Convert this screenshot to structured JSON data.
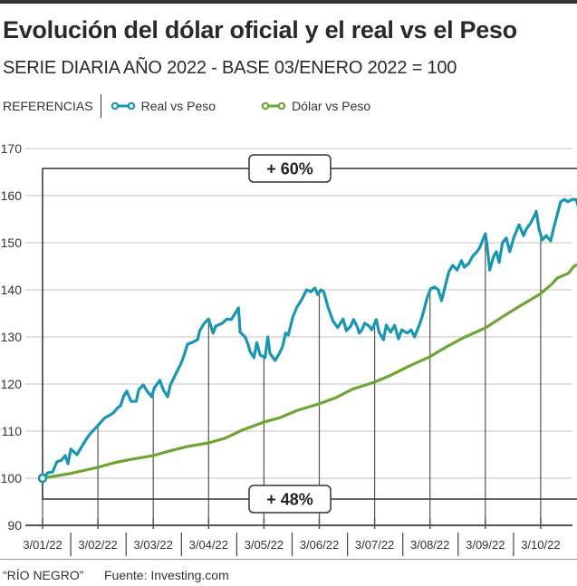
{
  "header": {
    "title": "Evolución del dólar oficial y el real vs el Peso",
    "subtitle": "SERIE DIARIA AÑO 2022 - BASE 03/ENERO 2022 = 100"
  },
  "legend": {
    "label": "REFERENCIAS",
    "items": [
      {
        "name": "Real vs Peso",
        "color": "#1a96b3",
        "icon": "line-dot-icon"
      },
      {
        "name": "Dólar vs Peso",
        "color": "#6ea535",
        "icon": "line-dot-icon"
      }
    ]
  },
  "footer": {
    "credit": "“RÍO NEGRO”",
    "source": "Fuente: Investing.com"
  },
  "chart_data": {
    "type": "line",
    "title": "Evolución del dólar oficial y el real vs el Peso",
    "subtitle": "SERIE DIARIA AÑO 2022 - BASE 03/ENERO 2022 = 100",
    "xlabel": "",
    "ylabel": "",
    "ylim": [
      90,
      170
    ],
    "yticks": [
      90,
      100,
      110,
      120,
      130,
      140,
      150,
      160,
      170
    ],
    "grid": true,
    "legend_position": "top-left",
    "x_tick_labels": [
      "3/01/22",
      "3/02/22",
      "3/03/22",
      "3/04/22",
      "3/05/22",
      "3/06/22",
      "3/07/22",
      "3/08/22",
      "3/09/22",
      "3/10/22"
    ],
    "x_unit": "months since 3/01/22",
    "annotations": [
      {
        "text": "+ 60%",
        "series": "Real vs Peso",
        "position": "top"
      },
      {
        "text": "+ 48%",
        "series": "Dólar vs Peso",
        "position": "bottom"
      }
    ],
    "series": [
      {
        "name": "Real vs Peso",
        "color": "#1a96b3",
        "x": [
          0,
          0.1,
          0.18,
          0.26,
          0.34,
          0.41,
          0.46,
          0.51,
          0.62,
          0.79,
          0.87,
          1.0,
          1.11,
          1.23,
          1.29,
          1.36,
          1.41,
          1.46,
          1.52,
          1.6,
          1.69,
          1.74,
          1.82,
          1.9,
          1.97,
          2.02,
          2.12,
          2.18,
          2.26,
          2.31,
          2.43,
          2.51,
          2.56,
          2.62,
          2.7,
          2.8,
          2.84,
          2.92,
          3.0,
          3.08,
          3.13,
          3.25,
          3.33,
          3.41,
          3.49,
          3.54,
          3.57,
          3.66,
          3.71,
          3.75,
          3.82,
          3.87,
          3.93,
          4.02,
          4.07,
          4.11,
          4.2,
          4.28,
          4.34,
          4.39,
          4.44,
          4.52,
          4.59,
          4.69,
          4.77,
          4.85,
          4.92,
          4.97,
          5.03,
          5.08,
          5.16,
          5.25,
          5.33,
          5.43,
          5.49,
          5.57,
          5.62,
          5.69,
          5.72,
          5.77,
          5.82,
          5.9,
          5.95,
          6.03,
          6.08,
          6.16,
          6.21,
          6.29,
          6.36,
          6.43,
          6.49,
          6.59,
          6.66,
          6.72,
          6.82,
          6.87,
          6.95,
          7.01,
          7.08,
          7.15,
          7.21,
          7.28,
          7.34,
          7.41,
          7.49,
          7.57,
          7.62,
          7.7,
          7.77,
          7.85,
          7.9,
          8.0,
          8.03,
          8.08,
          8.15,
          8.2,
          8.25,
          8.31,
          8.38,
          8.44,
          8.52,
          8.61,
          8.69,
          8.74,
          8.82,
          8.89,
          8.92,
          8.97,
          9.03,
          9.1,
          9.18,
          9.23,
          9.36,
          9.43,
          9.49,
          9.57,
          9.64,
          9.69,
          9.74,
          9.82
        ],
        "values": [
          100.0,
          101.2,
          101.3,
          103.5,
          103.8,
          104.8,
          103.1,
          106.2,
          105.0,
          108.3,
          109.6,
          111.2,
          112.7,
          113.5,
          114.0,
          115.0,
          115.4,
          117.3,
          118.5,
          116.3,
          116.3,
          118.8,
          119.8,
          118.3,
          117.3,
          119.2,
          120.8,
          118.8,
          117.3,
          119.8,
          122.7,
          124.6,
          126.2,
          128.5,
          128.8,
          129.4,
          131.3,
          132.9,
          133.8,
          130.8,
          132.3,
          132.9,
          133.8,
          133.7,
          135.2,
          136.2,
          131.0,
          130.0,
          128.5,
          126.9,
          125.6,
          128.8,
          126.2,
          125.6,
          130.0,
          126.5,
          125.0,
          126.5,
          128.1,
          130.8,
          130.4,
          134.2,
          136.2,
          138.1,
          140.0,
          139.6,
          140.4,
          139.0,
          140.0,
          139.6,
          136.2,
          133.3,
          132.0,
          133.8,
          131.3,
          132.3,
          133.7,
          132.0,
          130.8,
          131.5,
          132.9,
          132.3,
          131.5,
          133.7,
          131.0,
          129.4,
          132.5,
          131.0,
          132.5,
          129.6,
          131.5,
          130.8,
          131.5,
          130.0,
          132.9,
          134.8,
          138.3,
          140.2,
          140.6,
          140.0,
          137.7,
          141.0,
          143.8,
          145.2,
          144.2,
          146.2,
          144.8,
          145.6,
          147.1,
          148.1,
          149.0,
          151.9,
          149.6,
          144.2,
          147.1,
          148.1,
          145.8,
          150.0,
          151.0,
          148.1,
          151.3,
          153.8,
          151.5,
          152.9,
          154.2,
          155.8,
          156.7,
          152.9,
          150.6,
          151.5,
          150.4,
          152.9,
          158.7,
          159.2,
          158.7,
          159.2,
          159.2,
          157.3,
          159.0,
          160.6
        ]
      },
      {
        "name": "Dólar vs Peso",
        "color": "#6ea535",
        "x": [
          0,
          0.5,
          1.0,
          1.3,
          1.6,
          1.9,
          2.0,
          2.3,
          2.6,
          3.0,
          3.3,
          3.6,
          4.0,
          4.3,
          4.6,
          5.0,
          5.3,
          5.6,
          6.0,
          6.3,
          6.6,
          7.0,
          7.3,
          7.6,
          8.0,
          8.3,
          8.6,
          9.0,
          9.2,
          9.3,
          9.5,
          9.6,
          9.7,
          9.82
        ],
        "values": [
          100,
          101.0,
          102.3,
          103.3,
          104.0,
          104.6,
          104.8,
          105.8,
          106.7,
          107.5,
          108.5,
          110.2,
          111.9,
          112.9,
          114.4,
          115.8,
          117.1,
          118.9,
          120.4,
          121.9,
          123.7,
          125.8,
          127.9,
          129.8,
          131.9,
          134.2,
          136.4,
          139.2,
          141.2,
          142.5,
          143.5,
          145.0,
          145.6,
          148.2
        ]
      }
    ]
  }
}
